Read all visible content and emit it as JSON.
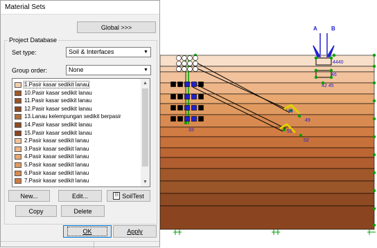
{
  "dialog": {
    "title": "Material Sets",
    "global_button": "Global >>>",
    "group_legend": "Project Database",
    "set_type": {
      "label": "Set type:",
      "value": "Soil & Interfaces"
    },
    "group_order": {
      "label": "Group order:",
      "value": "None"
    },
    "materials": [
      {
        "label": "1.Pasir kasar sedikit lanau",
        "color": "#f4d0b0",
        "selected": true
      },
      {
        "label": "10.Pasir kasar sedikit lanau",
        "color": "#a0582a"
      },
      {
        "label": "11.Pasir kasar sedikit lanau",
        "color": "#9a5528"
      },
      {
        "label": "12.Pasir kasar sedikit lanau",
        "color": "#8a4822"
      },
      {
        "label": "13.Lanau kelempungan sedikit berpasir",
        "color": "#b07040"
      },
      {
        "label": "14.Pasir kasar sedikit lanau",
        "color": "#8e4a22"
      },
      {
        "label": "15.Pasir kasar sedikit lanau",
        "color": "#8a4520"
      },
      {
        "label": "2.Pasir kasar sedikit lanau",
        "color": "#f2c29c"
      },
      {
        "label": "3.Pasir kasar sedikit lanau",
        "color": "#eeb688"
      },
      {
        "label": "4.Pasir kasar sedikit lanau",
        "color": "#e8a870"
      },
      {
        "label": "5.Pasir kasar sedikit lanau",
        "color": "#e09a60"
      },
      {
        "label": "6.Pasir kasar sedikit lanau",
        "color": "#d88a50"
      },
      {
        "label": "7.Pasir kasar sedikit lanau",
        "color": "#d07c42"
      }
    ],
    "buttons": {
      "new": "New...",
      "edit": "Edit...",
      "soiltest": "SoilTest",
      "copy": "Copy",
      "delete": "Delete",
      "ok": "OK",
      "apply": "Apply"
    }
  },
  "model": {
    "section_labels": {
      "a": "A",
      "b": "B"
    },
    "node_labels": [
      "4440",
      "46",
      "42 45",
      "48",
      "49",
      "51",
      "52",
      "33"
    ],
    "layer_colors": [
      "#f7dfca",
      "#f4d0b0",
      "#f2c29c",
      "#eeb688",
      "#e8a870",
      "#e09a60",
      "#d88a50",
      "#d07c42",
      "#c6703a",
      "#bc6634",
      "#b05e30",
      "#a0582a",
      "#9a5528",
      "#8e4a22",
      "#8a4520"
    ],
    "accent_colors": {
      "node": "#00a000",
      "label": "#2020d0",
      "line": "#000000",
      "anchor": "#f0e000"
    }
  }
}
